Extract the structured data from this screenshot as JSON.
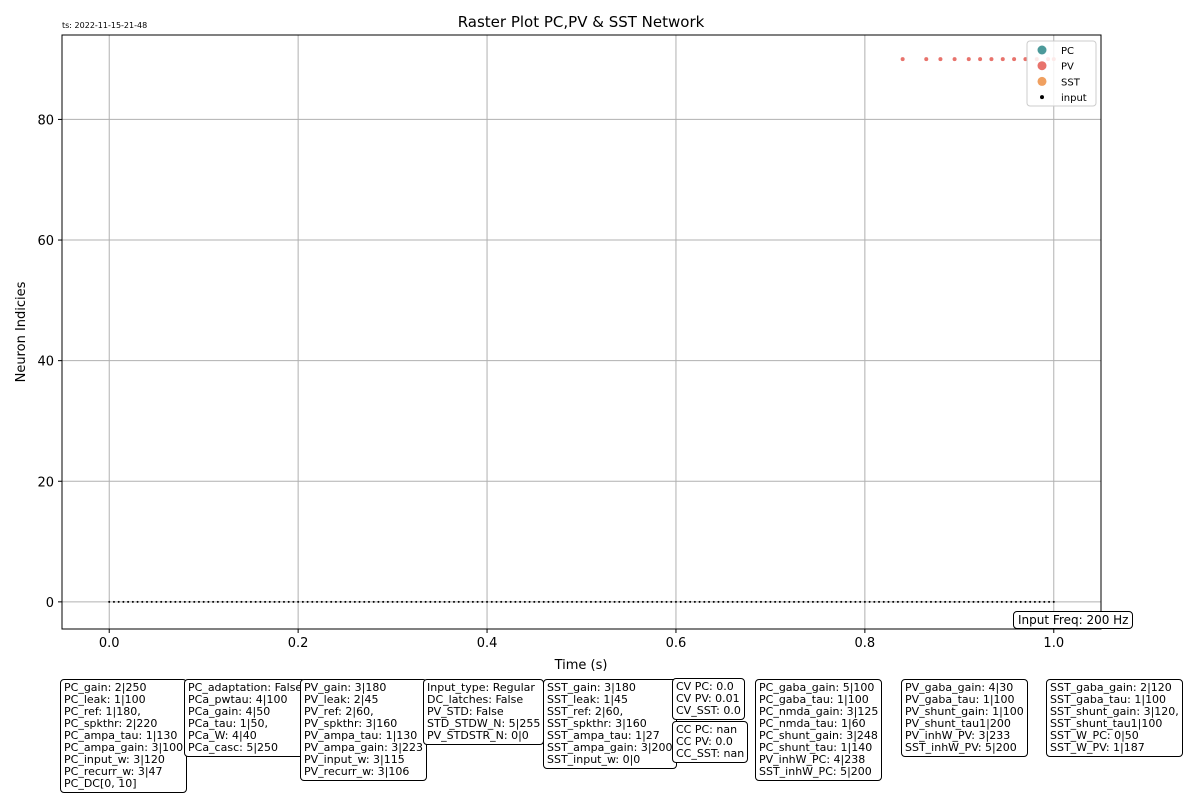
{
  "timestamp": "ts: 2022-11-15-21-48",
  "input_freq": "Input Freq: 200 Hz",
  "colors": {
    "PC": "#4c9a9a",
    "PV": "#e8736c",
    "SST": "#f0a060",
    "input": "#000000",
    "grid": "#b0b0b0"
  },
  "chart_data": {
    "type": "scatter",
    "title": "Raster Plot PC,PV & SST Network",
    "xlabel": "Time (s)",
    "ylabel": "Neuron Indicies",
    "xlim": [
      -0.05,
      1.05
    ],
    "ylim": [
      -4.5,
      94
    ],
    "xticks": [
      0.0,
      0.2,
      0.4,
      0.6,
      0.8,
      1.0
    ],
    "xtick_labels": [
      "0.0",
      "0.2",
      "0.4",
      "0.6",
      "0.8",
      "1.0"
    ],
    "yticks": [
      0,
      20,
      40,
      60,
      80
    ],
    "ytick_labels": [
      "0",
      "20",
      "40",
      "60",
      "80"
    ],
    "grid": true,
    "legend_position": "top-right",
    "legend": [
      "PC",
      "PV",
      "SST",
      "input"
    ],
    "series": [
      {
        "name": "PV",
        "x": [
          0.84,
          0.865,
          0.88,
          0.895,
          0.91,
          0.922,
          0.934,
          0.946,
          0.958,
          0.97,
          0.982,
          0.994,
          1.0
        ],
        "y": [
          90,
          90,
          90,
          90,
          90,
          90,
          90,
          90,
          90,
          90,
          90,
          90,
          90
        ]
      },
      {
        "name": "input",
        "x_start": 0.0,
        "x_end": 1.0,
        "interval": 0.005,
        "y": 0
      }
    ]
  },
  "param_boxes": [
    [
      "PC_gain: 2|250",
      "PC_leak: 1|100",
      "PC_ref: 1|180,",
      "PC_spkthr: 2|220",
      "PC_ampa_tau: 1|130",
      "PC_ampa_gain: 3|100",
      "PC_input_w: 3|120",
      "PC_recurr_w: 3|47",
      "PC_DC[0, 10]"
    ],
    [
      "PC_adaptation: False",
      "PCa_pwtau: 4|100",
      "PCa_gain: 4|50",
      "PCa_tau: 1|50,",
      "PCa_W: 4|40",
      "PCa_casc: 5|250"
    ],
    [
      "PV_gain: 3|180",
      "PV_leak: 2|45",
      "PV_ref: 2|60,",
      "PV_spkthr: 3|160",
      "PV_ampa_tau: 1|130",
      "PV_ampa_gain: 3|223",
      "PV_input_w: 3|115",
      "PV_recurr_w: 3|106"
    ],
    [
      "Input_type: Regular",
      "DC_latches: False",
      "PV_STD: False",
      "STD_STDW_N: 5|255",
      "PV_STDSTR_N: 0|0"
    ],
    [
      "SST_gain: 3|180",
      "SST_leak: 1|45",
      "SST_ref: 2|60,",
      "SST_spkthr: 3|160",
      "SST_ampa_tau: 1|27",
      "SST_ampa_gain: 3|200",
      "SST_input_w: 0|0"
    ],
    [
      "CV PC: 0.0",
      "CV PV: 0.01",
      "CV_SST: 0.0"
    ],
    [
      "CC PC: nan",
      "CC PV: 0.0",
      "CC_SST: nan"
    ],
    [
      "PC_gaba_gain: 5|100",
      "PC_gaba_tau: 1|100",
      "PC_nmda_gain: 3|125",
      "PC_nmda_tau: 1|60",
      "PC_shunt_gain: 3|248",
      "PC_shunt_tau: 1|140",
      "PV_inhW_PC: 4|238",
      "SST_inhW_PC: 5|200"
    ],
    [
      "PV_gaba_gain: 4|30",
      "PV_gaba_tau: 1|100",
      "PV_shunt_gain: 1|100",
      "PV_shunt_tau1|200",
      "PV_inhW_PV: 3|233",
      "SST_inhW_PV: 5|200"
    ],
    [
      "SST_gaba_gain: 2|120",
      "SST_gaba_tau: 1|100",
      "SST_shunt_gain: 3|120,",
      "SST_shunt_tau1|100",
      "SST_W_PC: 0|50",
      "SST_W_PV: 1|187"
    ]
  ]
}
